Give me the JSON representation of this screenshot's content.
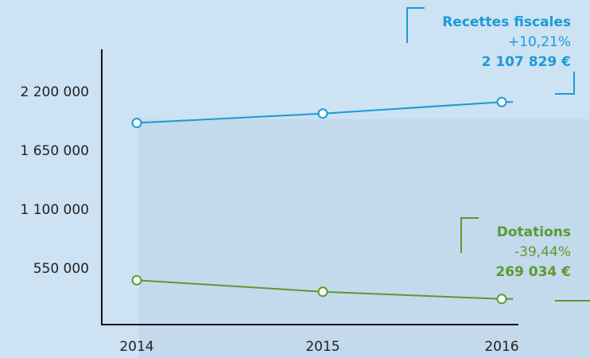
{
  "chart_data": {
    "type": "line",
    "categories": [
      "2014",
      "2015",
      "2016"
    ],
    "series": [
      {
        "name": "Recettes fiscales",
        "color": "#1b9ad8",
        "change": "+10,21%",
        "values": [
          1912557,
          2000000,
          2107829
        ],
        "value_labels": [
          null,
          null,
          "2 107 829 €"
        ]
      },
      {
        "name": "Dotations",
        "color": "#5b9a2f",
        "change": "-39,44%",
        "values": [
          444244,
          336000,
          269034
        ],
        "value_labels": [
          null,
          null,
          "269 034 €"
        ]
      }
    ],
    "ylim": [
      0,
      2600000
    ],
    "yticks": [
      {
        "value": 550000,
        "label": "550 000"
      },
      {
        "value": 1100000,
        "label": "1 100 000"
      },
      {
        "value": 1650000,
        "label": "1 650 000"
      },
      {
        "value": 2200000,
        "label": "2 200 000"
      }
    ],
    "grid": false
  }
}
